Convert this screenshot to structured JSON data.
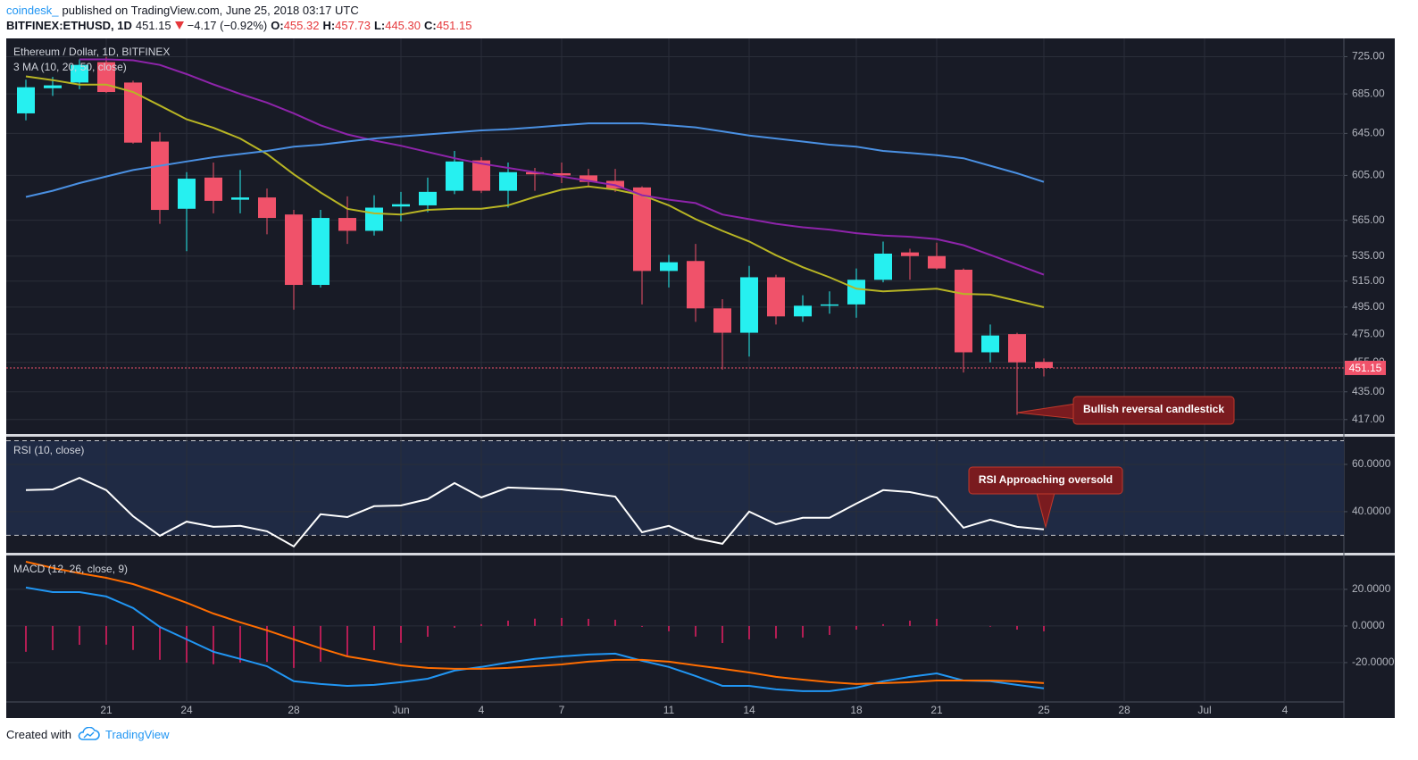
{
  "header": {
    "author": "coindesk_",
    "published": "published on TradingView.com, June 25, 2018 03:17 UTC",
    "symbol": "BITFINEX:ETHUSD, 1D",
    "price": "451.15",
    "change": "−4.17 (−0.92%)",
    "o_label": "O:",
    "open": "455.32",
    "h_label": "H:",
    "high": "457.73",
    "l_label": "L:",
    "low": "445.30",
    "c_label": "C:",
    "close": "451.15"
  },
  "footer": {
    "created": "Created with",
    "brand": "TradingView"
  },
  "chart_data": [
    {
      "type": "candlestick",
      "title": "Ethereum / Dollar, 1D, BITFINEX",
      "subtitle": "3 MA (10, 20, 50, close)",
      "log_scale": true,
      "grid": true,
      "ylim": [
        407.9,
        745.5
      ],
      "yticks": [
        {
          "value": 725,
          "label": "725.00"
        },
        {
          "value": 685,
          "label": "685.00"
        },
        {
          "value": 645,
          "label": "645.00"
        },
        {
          "value": 605,
          "label": "605.00"
        },
        {
          "value": 565,
          "label": "565.00"
        },
        {
          "value": 535,
          "label": "535.00"
        },
        {
          "value": 515,
          "label": "515.00"
        },
        {
          "value": 495,
          "label": "495.00"
        },
        {
          "value": 475,
          "label": "475.00"
        },
        {
          "value": 455,
          "label": "455.00"
        },
        {
          "value": 435,
          "label": "435.00"
        },
        {
          "value": 417,
          "label": "417.00"
        }
      ],
      "up_color": "#26f0f0",
      "down_color": "#f0526a",
      "open": [
        665,
        691,
        697,
        719,
        697,
        637,
        575,
        603,
        583,
        585,
        570,
        512,
        567,
        556,
        577,
        578,
        591,
        619,
        591,
        608,
        607,
        605,
        600,
        594,
        523,
        531,
        494,
        476,
        518,
        488,
        496,
        497,
        516,
        538,
        535,
        524,
        462,
        475,
        455.32,
        null,
        null,
        null,
        null,
        null,
        null,
        null,
        null,
        null,
        null,
        null
      ],
      "high": [
        700,
        703,
        722,
        725,
        699,
        646,
        608,
        617,
        610,
        593,
        574,
        574,
        586,
        587,
        590,
        603,
        628,
        622,
        617,
        612,
        617,
        611,
        611,
        595,
        536,
        545,
        501,
        527,
        520,
        504,
        507,
        525,
        547,
        541,
        546,
        525,
        482,
        476,
        457.73,
        null,
        null,
        null,
        null,
        null,
        null,
        null,
        null,
        null,
        null,
        null
      ],
      "low": [
        658,
        683,
        690,
        686,
        635,
        562,
        539,
        571,
        571,
        553,
        493,
        510,
        545,
        552,
        564,
        572,
        588,
        589,
        576,
        591,
        598,
        594,
        590,
        497,
        510,
        484,
        450,
        459,
        482,
        484,
        490,
        487,
        514,
        516,
        524,
        448,
        455,
        420,
        445.3,
        null,
        null,
        null,
        null,
        null,
        null,
        null,
        null,
        null,
        null,
        null
      ],
      "close": [
        692,
        694,
        716,
        687,
        636,
        574,
        602,
        582,
        585,
        567,
        512,
        567,
        556,
        576,
        579,
        590,
        618,
        591,
        608,
        606,
        605,
        599,
        593,
        523,
        530,
        494,
        476,
        518,
        488,
        496,
        497,
        516,
        537,
        535,
        525,
        462,
        474,
        455,
        451.15,
        null,
        null,
        null,
        null,
        null,
        null,
        null,
        null,
        null,
        null,
        null
      ],
      "series": [
        {
          "color": "#b8b524",
          "values": [
            703.6,
            699.6,
            694.8,
            694.8,
            687,
            673,
            659,
            650.5,
            640,
            625,
            606,
            589.5,
            575,
            571,
            570,
            574,
            575,
            575,
            578,
            585.5,
            592,
            595,
            592,
            587,
            578,
            566,
            556,
            547,
            535.7,
            526,
            518,
            509,
            507,
            508,
            509,
            505,
            504.5,
            499.7,
            494.9,
            null,
            null,
            null,
            null,
            null,
            null,
            null,
            null,
            null,
            null,
            null
          ]
        },
        {
          "color": "#8e24aa",
          "values": [
            null,
            null,
            722,
            722,
            721,
            716,
            706,
            695,
            685,
            676,
            665,
            653,
            644,
            638,
            633,
            627,
            621,
            616,
            612,
            608,
            604,
            600,
            596,
            587,
            583,
            580,
            570,
            566,
            562,
            559,
            557,
            554,
            552,
            551,
            549,
            544,
            536,
            528,
            520,
            null,
            null,
            null,
            null,
            null,
            null,
            null,
            null,
            null,
            null,
            null
          ]
        },
        {
          "color": "#4a90e2",
          "values": [
            585.5,
            591,
            598,
            604,
            610,
            614,
            618,
            622,
            625,
            628,
            632,
            634,
            637,
            640,
            642,
            644,
            646,
            648,
            649,
            651,
            653,
            655,
            655,
            655,
            653,
            651,
            647,
            643,
            640,
            637,
            634,
            632,
            628,
            626,
            624,
            621,
            614,
            607,
            599,
            null,
            null,
            null,
            null,
            null,
            null,
            null,
            null,
            null,
            null,
            null
          ]
        }
      ],
      "last_price": 451.15,
      "last_price_color": "#f0526a",
      "annotation": "Bullish reversal candlestick"
    },
    {
      "type": "line",
      "title": "RSI (10, close)",
      "grid": true,
      "ylim": [
        22.6,
        71.7
      ],
      "yticks": [
        {
          "value": 60,
          "label": "60.0000"
        },
        {
          "value": 40,
          "label": "40.0000"
        }
      ],
      "bands": [
        30,
        70
      ],
      "series": [
        {
          "color": "#ffffff",
          "values": [
            49.1,
            49.4,
            54.3,
            49.1,
            38.1,
            29.8,
            35.8,
            33.6,
            34,
            31.7,
            25.3,
            38.9,
            37.7,
            42.3,
            42.6,
            45.3,
            52.1,
            46,
            50.2,
            49.8,
            49.4,
            47.9,
            46.4,
            31.3,
            34,
            28.7,
            26.4,
            40,
            34.7,
            37.4,
            37.4,
            43.4,
            49.1,
            48.3,
            46,
            33.2,
            36.6,
            33.6,
            32.5,
            null,
            null,
            null,
            null,
            null,
            null,
            null,
            null,
            null,
            null,
            null
          ]
        }
      ],
      "annotation": "RSI Approaching oversold"
    },
    {
      "type": "macd",
      "title": "MACD (12, 26, close, 9)",
      "grid": true,
      "ylim": [
        -41.5,
        38.5
      ],
      "yticks": [
        {
          "value": 20,
          "label": "20.0000"
        },
        {
          "value": 0,
          "label": "0.0000"
        },
        {
          "value": -20,
          "label": "-20.0000"
        }
      ],
      "categories": [
        null,
        null,
        null,
        "21",
        null,
        null,
        "24",
        null,
        null,
        null,
        "28",
        null,
        null,
        null,
        "Jun",
        null,
        null,
        "4",
        null,
        null,
        "7",
        null,
        null,
        null,
        "11",
        null,
        null,
        "14",
        null,
        null,
        null,
        "18",
        null,
        null,
        "21",
        null,
        null,
        null,
        "25",
        null,
        null,
        "28",
        null,
        null,
        "Jul",
        null,
        null,
        "4",
        null,
        null
      ],
      "histogram": {
        "color": "#e91e63",
        "values": [
          -14.1,
          -13.2,
          -10.3,
          -10.2,
          -13.1,
          -18.5,
          -20,
          -20.9,
          -20,
          -19.6,
          -22.9,
          -19.5,
          -16.1,
          -13.2,
          -9.2,
          -5.9,
          -1,
          1,
          2.9,
          4,
          4.4,
          3.9,
          3.4,
          -0.5,
          -2.9,
          -5.8,
          -9.3,
          -7.3,
          -6.8,
          -6.3,
          -4.9,
          -2,
          1,
          2.9,
          3.9,
          0,
          -0.4,
          -2,
          -2.9,
          null,
          null,
          null,
          null,
          null,
          null,
          null,
          null,
          null,
          null,
          null
        ]
      },
      "series": [
        {
          "color": "#2196f3",
          "values": [
            21,
            18.5,
            18.5,
            16.1,
            9.8,
            -0.5,
            -7.3,
            -14.1,
            -18,
            -22,
            -30.2,
            -31.7,
            -32.7,
            -32.2,
            -30.7,
            -28.8,
            -24.4,
            -22.4,
            -20,
            -18,
            -16.6,
            -15.6,
            -15.1,
            -19,
            -22.4,
            -27.3,
            -32.7,
            -32.7,
            -34.6,
            -35.6,
            -35.6,
            -33.7,
            -30.2,
            -27.8,
            -25.9,
            -29.8,
            -30.2,
            -32.2,
            -34.1,
            null,
            null,
            null,
            null,
            null,
            null,
            null,
            null,
            null,
            null,
            null
          ]
        },
        {
          "color": "#ff6d00",
          "values": [
            35.1,
            31.7,
            28.8,
            26.3,
            22.9,
            18,
            12.7,
            6.8,
            2,
            -2.4,
            -7.3,
            -12.2,
            -16.6,
            -19,
            -21.5,
            -22.9,
            -23.4,
            -23.4,
            -22.9,
            -22,
            -21,
            -19.5,
            -18.5,
            -18.5,
            -19.5,
            -21.5,
            -23.4,
            -25.4,
            -27.8,
            -29.3,
            -30.7,
            -31.7,
            -31.2,
            -30.7,
            -29.8,
            -29.8,
            -29.8,
            -30.2,
            -31.2,
            null,
            null,
            null,
            null,
            null,
            null,
            null,
            null,
            null,
            null,
            null
          ]
        }
      ]
    }
  ]
}
